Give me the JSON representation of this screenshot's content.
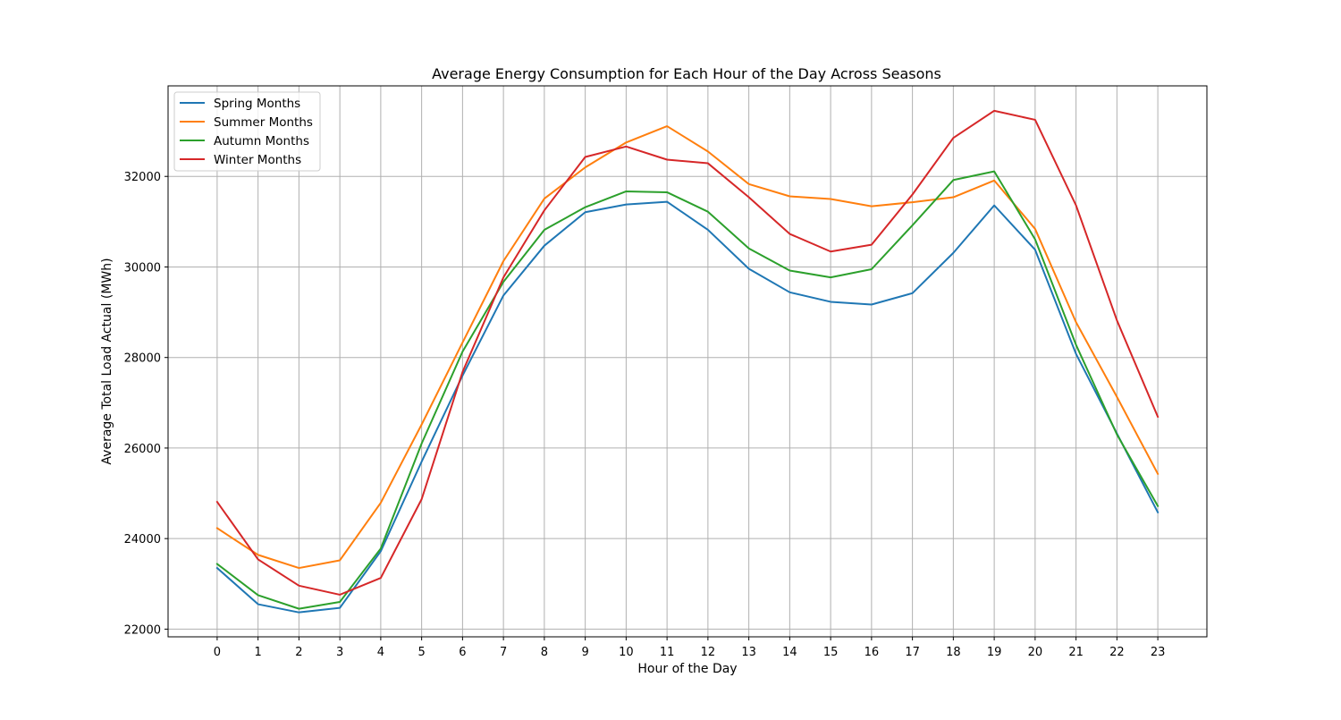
{
  "chart_data": {
    "type": "line",
    "title": "Average Energy Consumption for Each Hour of the Day Across Seasons",
    "xlabel": "Hour of the Day",
    "ylabel": "Average Total Load Actual (MWh)",
    "x": [
      0,
      1,
      2,
      3,
      4,
      5,
      6,
      7,
      8,
      9,
      10,
      11,
      12,
      13,
      14,
      15,
      16,
      17,
      18,
      19,
      20,
      21,
      22,
      23
    ],
    "xlim": [
      -1.2,
      24.2
    ],
    "ylim": [
      21830,
      34000
    ],
    "yticks": [
      22000,
      24000,
      26000,
      28000,
      30000,
      32000
    ],
    "grid": true,
    "legend_position": "upper left",
    "series": [
      {
        "name": "Spring Months",
        "color": "#1f77b4",
        "values": [
          23350,
          22550,
          22370,
          22470,
          23720,
          25700,
          27600,
          29370,
          30470,
          31210,
          31380,
          31440,
          30820,
          29960,
          29440,
          29230,
          29170,
          29420,
          30310,
          31360,
          30380,
          28080,
          26320,
          24580
        ]
      },
      {
        "name": "Summer Months",
        "color": "#ff7f0e",
        "values": [
          24230,
          23640,
          23350,
          23520,
          24790,
          26520,
          28330,
          30130,
          31510,
          32200,
          32750,
          33110,
          32550,
          31830,
          31560,
          31500,
          31340,
          31430,
          31540,
          31910,
          30840,
          28780,
          27130,
          25430
        ]
      },
      {
        "name": "Autumn Months",
        "color": "#2ca02c",
        "values": [
          23440,
          22750,
          22450,
          22600,
          23780,
          26100,
          28130,
          29670,
          30820,
          31320,
          31670,
          31650,
          31220,
          30410,
          29920,
          29770,
          29950,
          30920,
          31920,
          32110,
          30610,
          28280,
          26300,
          24720
        ]
      },
      {
        "name": "Winter Months",
        "color": "#d62728",
        "values": [
          24810,
          23540,
          22960,
          22760,
          23130,
          24870,
          27680,
          29770,
          31250,
          32430,
          32660,
          32370,
          32290,
          31540,
          30730,
          30340,
          30490,
          31600,
          32850,
          33450,
          33250,
          31360,
          28820,
          26690
        ]
      }
    ]
  }
}
